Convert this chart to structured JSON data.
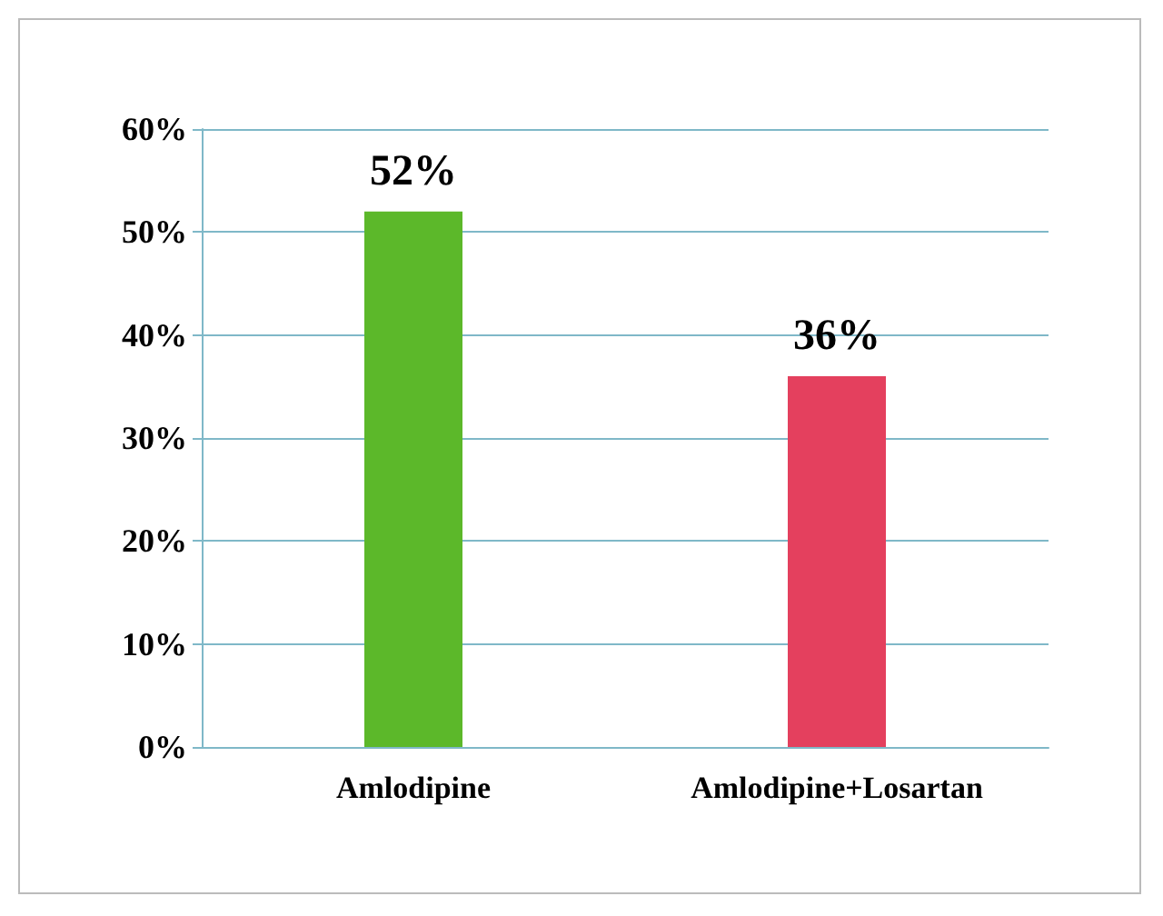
{
  "chart_data": {
    "type": "bar",
    "categories": [
      "Amlodipine",
      "Amlodipine+Losartan"
    ],
    "values": [
      52,
      36
    ],
    "colors": [
      "#5cb82a",
      "#e4405e"
    ],
    "value_labels": [
      "52%",
      "36%"
    ],
    "ylim": [
      0,
      60
    ],
    "yticks": [
      {
        "value": 0,
        "label": "0%"
      },
      {
        "value": 10,
        "label": "10%"
      },
      {
        "value": 20,
        "label": "20%"
      },
      {
        "value": 30,
        "label": "30%"
      },
      {
        "value": 40,
        "label": "40%"
      },
      {
        "value": 50,
        "label": "50%"
      },
      {
        "value": 60,
        "label": "60%"
      }
    ],
    "grid": true
  }
}
